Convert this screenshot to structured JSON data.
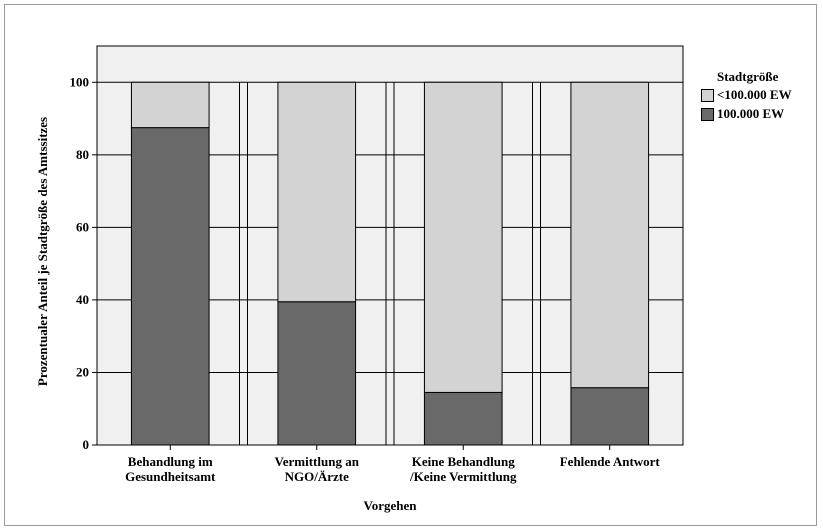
{
  "chart_data": {
    "type": "bar",
    "stacked": true,
    "categories": [
      [
        "Behandlung im",
        "Gesundheitsamt"
      ],
      [
        "Vermittlung an",
        "NGO/Ärzte"
      ],
      [
        "Keine Behandlung",
        "/Keine Vermittlung"
      ],
      [
        "Fehlende Antwort"
      ]
    ],
    "series": [
      {
        "name": "100.000 EW",
        "values": [
          87.5,
          39.5,
          14.5,
          15.8
        ],
        "color": "#696969"
      },
      {
        "name": "<100.000 EW",
        "values": [
          12.5,
          60.5,
          85.5,
          84.2
        ],
        "color": "#d3d3d3"
      }
    ],
    "xlabel": "Vorgehen",
    "ylabel": "Prozentualer Anteil je Stadtgröße des Amtssitzes",
    "ylim": [
      0,
      110
    ],
    "yticks": [
      0,
      20,
      40,
      60,
      80,
      100
    ],
    "grid": true,
    "plot_background": "#f0f0f0",
    "legend": {
      "title": "Stadtgröße",
      "placement": "right",
      "entries": [
        {
          "label": "<100.000 EW",
          "color": "#d3d3d3"
        },
        {
          "label": "100.000 EW",
          "color": "#696969"
        }
      ]
    }
  }
}
